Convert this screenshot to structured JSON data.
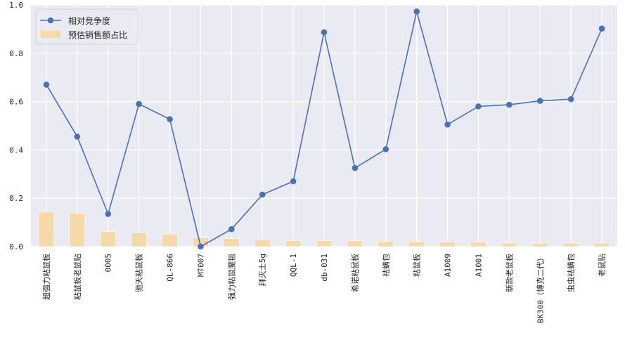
{
  "chart_data": {
    "type": "bar+line",
    "title": "",
    "xlabel": "",
    "ylabel": "",
    "ylim": [
      0,
      1.0
    ],
    "yticks": [
      0.0,
      0.2,
      0.4,
      0.6,
      0.8,
      1.0
    ],
    "ytick_labels": [
      "0.0",
      "0.2",
      "0.4",
      "0.6",
      "0.8",
      "1.0"
    ],
    "grid": true,
    "legend_position": "top-left",
    "categories": [
      "超强力粘鼠板",
      "粘鼠板老鼠贴",
      "0005",
      "驰天粘鼠板",
      "QL-866",
      "MT007",
      "强力粘鼠魔毯",
      "拜灭士5g",
      "QQL-1",
      "db-031",
      "希诺粘鼠板",
      "祛螨包",
      "粘鼠板",
      "A1009",
      "A1001",
      "新款老鼠板",
      "BK300（博克二代）",
      "虫虫祛螨包",
      "老鼠贴"
    ],
    "series": [
      {
        "name": "相对竞争度",
        "kind": "line",
        "color": "#4c72b0",
        "values": [
          0.67,
          0.455,
          0.135,
          0.59,
          0.527,
          0.0,
          0.072,
          0.215,
          0.27,
          0.887,
          0.325,
          0.403,
          0.973,
          0.505,
          0.58,
          0.587,
          0.603,
          0.61,
          0.902
        ]
      },
      {
        "name": "预估销售额占比",
        "kind": "bar",
        "color": "#f5d9a8",
        "values": [
          0.143,
          0.138,
          0.062,
          0.058,
          0.052,
          0.036,
          0.033,
          0.028,
          0.025,
          0.025,
          0.024,
          0.021,
          0.02,
          0.018,
          0.018,
          0.015,
          0.014,
          0.014,
          0.014
        ]
      }
    ]
  }
}
